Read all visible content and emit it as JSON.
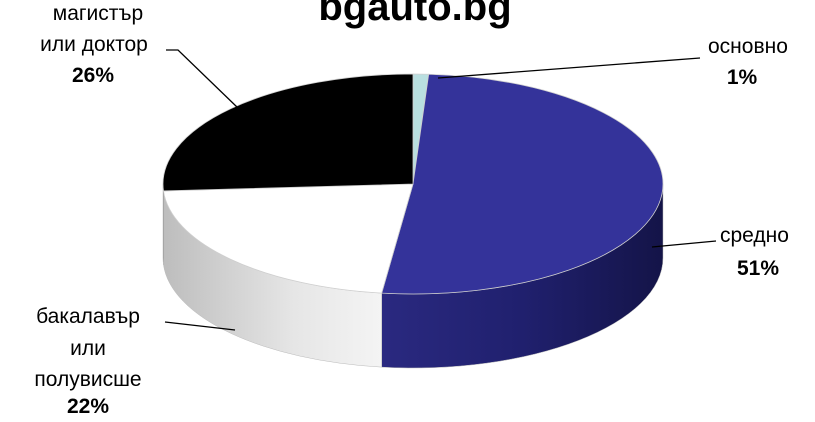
{
  "chart_data": {
    "type": "pie",
    "style": "3d",
    "title": "bgauto.bg",
    "slices": [
      {
        "label": "основно",
        "label_lines": [
          "основно"
        ],
        "value": 1,
        "display": "1%",
        "color": "#b9dfe0",
        "side_color": "#8fbcbf"
      },
      {
        "label": "средно",
        "label_lines": [
          "средно"
        ],
        "value": 51,
        "display": "51%",
        "color": "#34339a",
        "side_color": "#1b1a63"
      },
      {
        "label": "бакалавър или полувисше",
        "label_lines": [
          "бакалавър",
          "или",
          "полувисше"
        ],
        "value": 22,
        "display": "22%",
        "color": "#ffffff",
        "side_color": "#d2d2d2"
      },
      {
        "label": "магистър или доктор",
        "label_lines": [
          "магистър",
          "или доктор"
        ],
        "value": 26,
        "display": "26%",
        "color": "#000000",
        "side_color": "#111111"
      }
    ],
    "legend": "none"
  }
}
